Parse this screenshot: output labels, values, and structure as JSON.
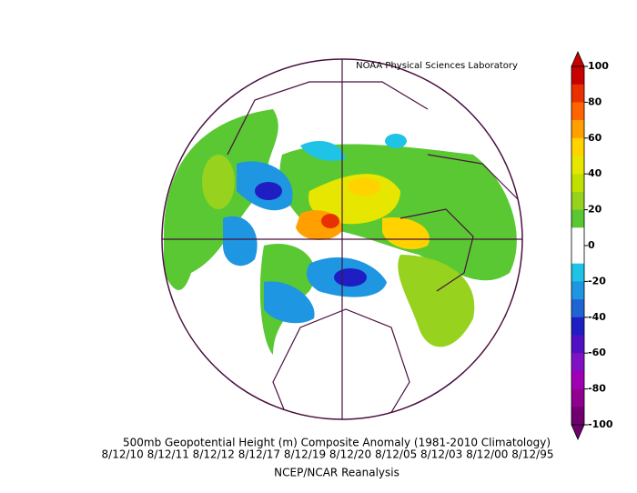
{
  "source": "NOAA Physical Sciences Laboratory",
  "title": "500mb Geopotential Height (m) Composite Anomaly (1981-2010 Climatology)",
  "dates": "8/12/10 8/12/11 8/12/12 8/12/17 8/12/19 8/12/20 8/12/05 8/12/03 8/12/00 8/12/95",
  "dataset": "NCEP/NCAR Reanalysis",
  "colorbar": {
    "ticks": [
      100,
      80,
      60,
      40,
      20,
      0,
      -20,
      -40,
      -60,
      -80,
      -100
    ],
    "colors": [
      "#c80000",
      "#e83000",
      "#ff6400",
      "#ffa000",
      "#ffd200",
      "#e6e600",
      "#c0e000",
      "#96d21e",
      "#5ac832",
      "#ffffff",
      "#ffffff",
      "#1ec3e6",
      "#1e96e1",
      "#1e64d2",
      "#1e1ec3",
      "#5010c3",
      "#8010c3",
      "#a000b4",
      "#900090",
      "#700070"
    ]
  }
}
